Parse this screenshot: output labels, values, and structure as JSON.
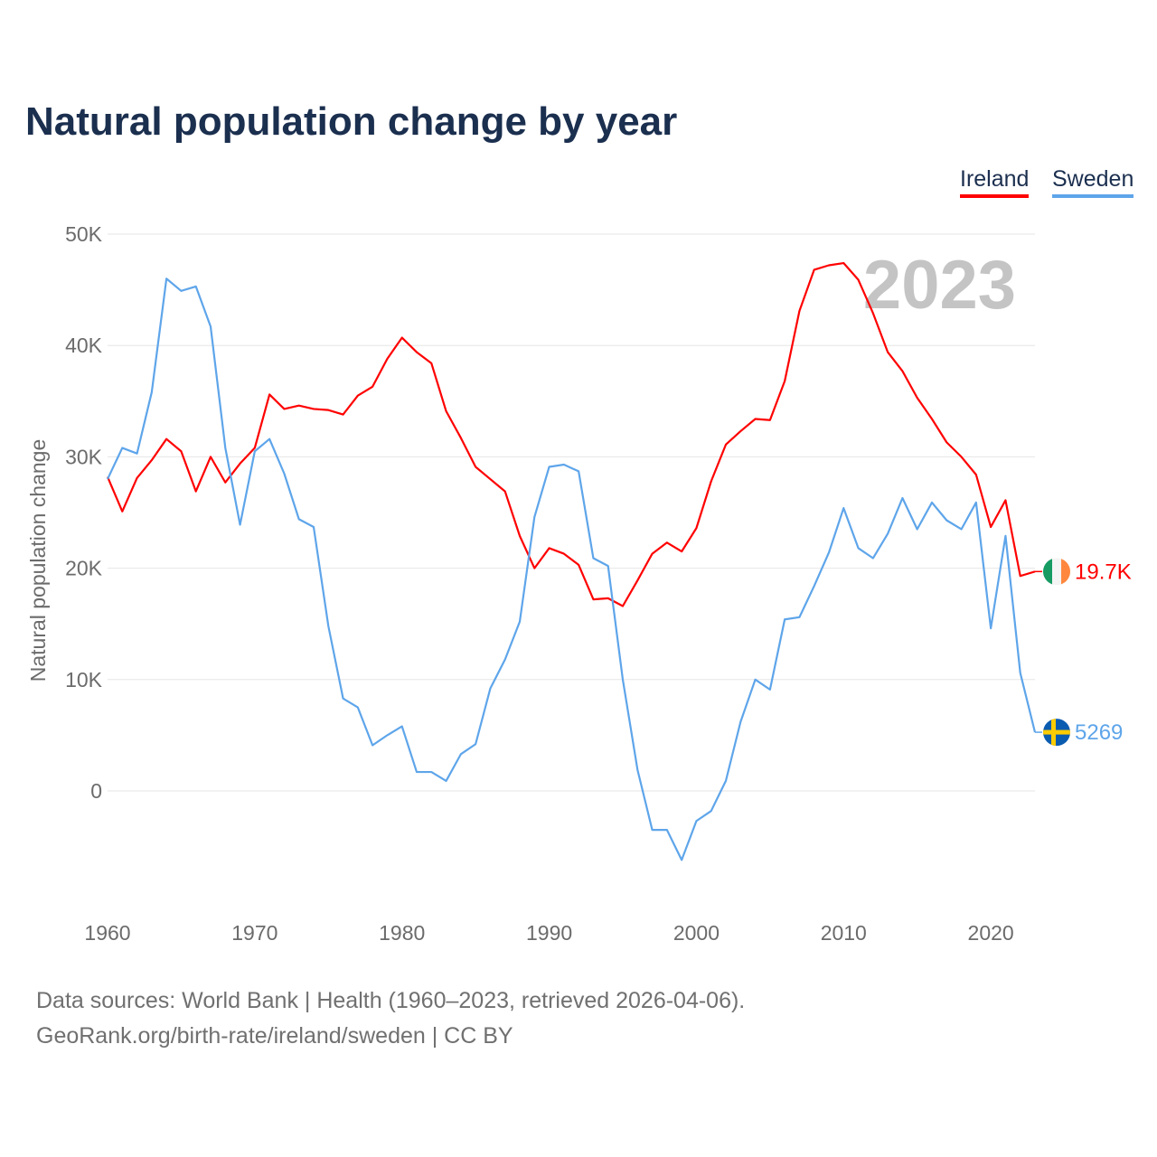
{
  "chart_data": {
    "type": "line",
    "title": "Natural population change by year",
    "xlabel": "",
    "ylabel": "Natural population change",
    "year_watermark": "2023",
    "xlim": [
      1960,
      2023
    ],
    "ylim": [
      -9300,
      50000
    ],
    "x_ticks": [
      "1960",
      "1970",
      "1980",
      "1990",
      "2000",
      "2010",
      "2020"
    ],
    "y_ticks": [
      {
        "v": 0,
        "label": "0"
      },
      {
        "v": 10000,
        "label": "10K"
      },
      {
        "v": 20000,
        "label": "20K"
      },
      {
        "v": 30000,
        "label": "30K"
      },
      {
        "v": 40000,
        "label": "40K"
      },
      {
        "v": 50000,
        "label": "50K"
      }
    ],
    "grid": true,
    "legend_placement": "top-right",
    "x_start": 1960,
    "series": [
      {
        "name": "Ireland",
        "color": "#ff0000",
        "end_label": "19.7K",
        "flag": "ireland-flag",
        "values": [
          28.2,
          25.1,
          28.1,
          29.7,
          31.6,
          30.5,
          26.9,
          30.0,
          27.7,
          29.4,
          30.8,
          35.6,
          34.3,
          34.6,
          34.3,
          34.2,
          33.8,
          35.5,
          36.3,
          38.8,
          40.7,
          39.4,
          38.4,
          34.1,
          31.7,
          29.1,
          28.0,
          26.9,
          22.9,
          20.0,
          21.8,
          21.3,
          20.3,
          17.2,
          17.3,
          16.6,
          18.9,
          21.3,
          22.3,
          21.5,
          23.6,
          27.8,
          31.1,
          32.3,
          33.4,
          33.3,
          36.8,
          43.1,
          46.8,
          47.2,
          47.4,
          45.9,
          42.9,
          39.4,
          37.7,
          35.3,
          33.4,
          31.3,
          30.0,
          28.4,
          23.7,
          26.1,
          19.3,
          19.7
        ]
      },
      {
        "name": "Sweden",
        "color": "#5ea5ea",
        "end_label": "5269",
        "flag": "sweden-flag",
        "values": [
          28.0,
          30.8,
          30.3,
          35.8,
          46.0,
          44.9,
          45.3,
          41.7,
          30.8,
          23.9,
          30.5,
          31.6,
          28.5,
          24.4,
          23.7,
          14.8,
          8.3,
          7.5,
          4.1,
          5.0,
          5.8,
          1.7,
          1.7,
          0.9,
          3.3,
          4.2,
          9.2,
          11.8,
          15.2,
          24.6,
          29.1,
          29.3,
          28.7,
          20.9,
          20.2,
          10.0,
          1.9,
          -3.5,
          -3.5,
          -6.2,
          -2.7,
          -1.8,
          0.9,
          6.2,
          10.0,
          9.1,
          15.4,
          15.6,
          18.4,
          21.4,
          25.4,
          21.8,
          20.9,
          23.1,
          26.3,
          23.5,
          25.9,
          24.3,
          23.5,
          25.9,
          14.6,
          22.9,
          10.6,
          5.269
        ]
      }
    ],
    "value_unit": "thousands"
  },
  "source": {
    "line1": "Data sources: World Bank | Health (1960–2023, retrieved 2026-04-06).",
    "line2": "GeoRank.org/birth-rate/ireland/sweden | CC BY"
  }
}
